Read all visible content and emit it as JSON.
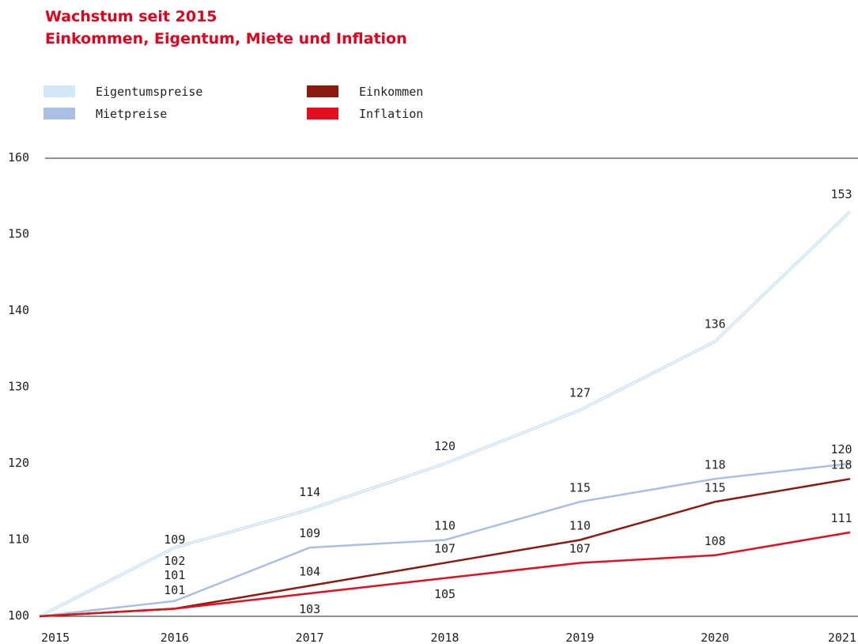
{
  "chart_data": {
    "type": "line",
    "title": "Wachstum seit 2015",
    "subtitle": "Einkommen, Eigentum, Miete und Inflation",
    "categories": [
      "2015",
      "2016",
      "2017",
      "2018",
      "2019",
      "2020",
      "2021"
    ],
    "series": [
      {
        "name": "Eigentumspreise",
        "color": "#d3e8f7",
        "values": [
          100,
          109,
          114,
          120,
          127,
          136,
          153
        ]
      },
      {
        "name": "Mietpreise",
        "color": "#a9bfe3",
        "values": [
          100,
          102,
          109,
          110,
          115,
          118,
          120
        ]
      },
      {
        "name": "Einkommen",
        "color": "#8b1a10",
        "values": [
          100,
          101,
          104,
          107,
          110,
          115,
          118
        ]
      },
      {
        "name": "Inflation",
        "color": "#e30f1f",
        "values": [
          100,
          101,
          103,
          105,
          107,
          108,
          111
        ]
      }
    ],
    "ylim": [
      100,
      160
    ],
    "yticks": [
      100,
      110,
      120,
      130,
      140,
      150,
      160
    ]
  }
}
